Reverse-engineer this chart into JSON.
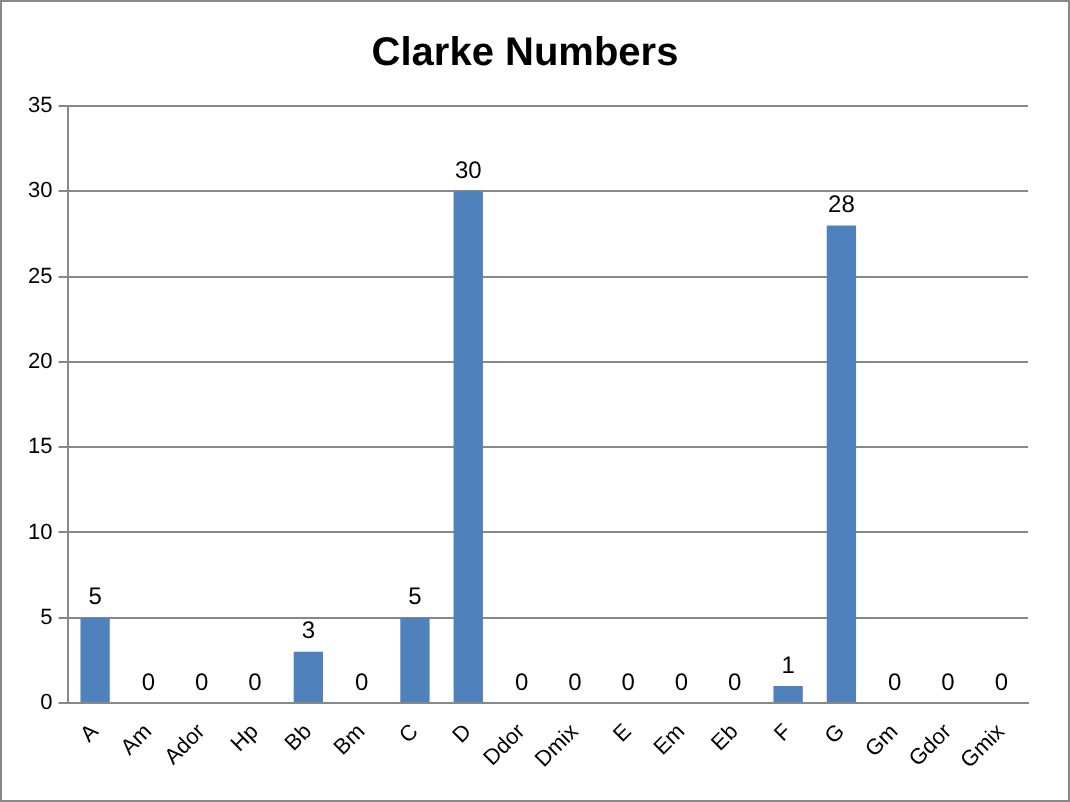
{
  "chart_data": {
    "type": "bar",
    "title": "Clarke Numbers",
    "categories": [
      "A",
      "Am",
      "Ador",
      "Hp",
      "Bb",
      "Bm",
      "C",
      "D",
      "Ddor",
      "Dmix",
      "E",
      "Em",
      "Eb",
      "F",
      "G",
      "Gm",
      "Gdor",
      "Gmix"
    ],
    "values": [
      5,
      0,
      0,
      0,
      3,
      0,
      5,
      30,
      0,
      0,
      0,
      0,
      0,
      1,
      28,
      0,
      0,
      0
    ],
    "color": "#4f81bd",
    "ylim": [
      0,
      35
    ],
    "yticks": [
      0,
      5,
      10,
      15,
      20,
      25,
      30,
      35
    ],
    "grid": "y",
    "data_labels": true,
    "legend": false
  }
}
